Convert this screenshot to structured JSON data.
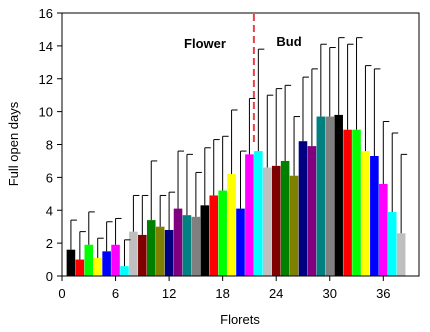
{
  "chart_data": {
    "type": "bar",
    "xlabel": "Florets",
    "ylabel": "Full open days",
    "xlim": [
      0,
      40
    ],
    "ylim": [
      0,
      16
    ],
    "xticks": [
      0,
      6,
      12,
      18,
      24,
      30,
      36
    ],
    "yticks": [
      0,
      2,
      4,
      6,
      8,
      10,
      12,
      14,
      16
    ],
    "grid": false,
    "legend": "none",
    "annotations": [
      {
        "text": "Flower",
        "x": 17
      },
      {
        "text": "Bud",
        "x": 24.5
      }
    ],
    "divider_x": 21.5,
    "divider_color": "#e8404a",
    "x": [
      1,
      2,
      3,
      4,
      5,
      6,
      7,
      8,
      9,
      10,
      11,
      12,
      13,
      14,
      15,
      16,
      17,
      18,
      19,
      20,
      21,
      22,
      23,
      24,
      25,
      26,
      27,
      28,
      29,
      30,
      31,
      32,
      33,
      34,
      35,
      36,
      37,
      38
    ],
    "values": [
      1.6,
      1.0,
      1.9,
      1.1,
      1.5,
      1.9,
      0.6,
      2.7,
      2.5,
      3.4,
      3.0,
      2.8,
      4.1,
      3.7,
      3.6,
      4.3,
      4.9,
      5.2,
      6.2,
      4.1,
      7.4,
      7.6,
      6.6,
      6.7,
      7.0,
      6.1,
      8.2,
      7.9,
      9.7,
      9.7,
      9.8,
      8.9,
      8.9,
      7.6,
      7.3,
      5.6,
      3.9,
      2.6
    ],
    "errors": [
      1.8,
      1.7,
      2.0,
      1.2,
      1.8,
      1.6,
      1.6,
      2.2,
      2.4,
      3.6,
      1.9,
      2.3,
      3.5,
      3.7,
      2.7,
      3.5,
      3.4,
      3.3,
      3.9,
      3.5,
      3.4,
      6.2,
      4.4,
      4.7,
      4.6,
      3.6,
      3.9,
      4.7,
      4.4,
      4.2,
      4.7,
      5.2,
      5.6,
      5.2,
      5.3,
      3.8,
      4.8,
      4.8
    ],
    "colors": [
      "#000000",
      "#ff0000",
      "#00ff00",
      "#ffff00",
      "#0000ff",
      "#ff00ff",
      "#00ffff",
      "#bfbfbf",
      "#800000",
      "#008000",
      "#808000",
      "#000080",
      "#800080",
      "#008080",
      "#808080",
      "#000000",
      "#ff0000",
      "#00ff00",
      "#ffff00",
      "#0000ff",
      "#ff00ff",
      "#00ffff",
      "#bfbfbf",
      "#800000",
      "#008000",
      "#808000",
      "#000080",
      "#800080",
      "#008080",
      "#808080",
      "#000000",
      "#ff0000",
      "#00ff00",
      "#ffff00",
      "#0000ff",
      "#ff00ff",
      "#00ffff",
      "#bfbfbf"
    ]
  }
}
